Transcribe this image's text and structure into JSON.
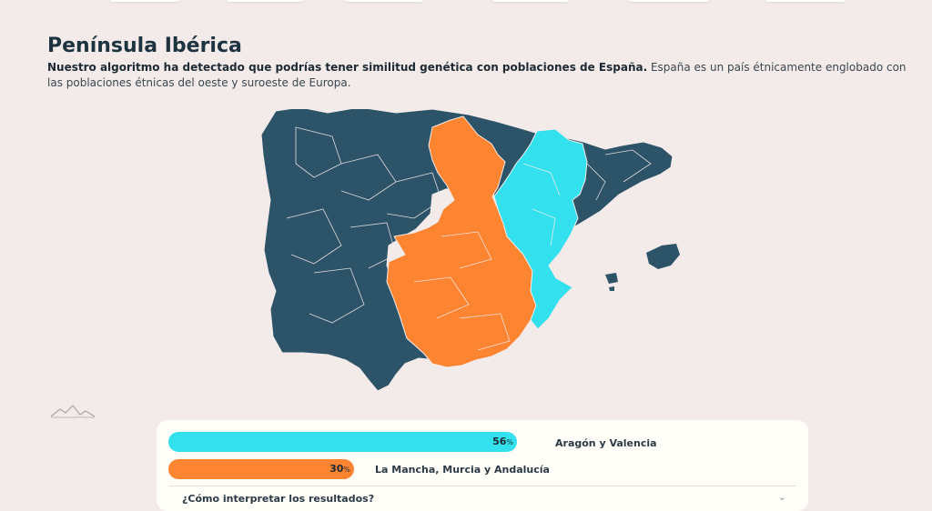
{
  "colors": {
    "dark": "#2c5368",
    "orange": "#fd8430",
    "cyan": "#33e1ee",
    "background": "#f3ebe9"
  },
  "section": {
    "title": "Península Ibérica",
    "desc_bold": "Nuestro algoritmo ha detectado que podrías tener similitud genética con poblaciones de España.",
    "desc_rest": " España es un país étnicamente englobado con las poblaciones étnicas del oeste y suroeste de Europa."
  },
  "map": {
    "icon": "iberian-peninsula-map"
  },
  "results": [
    {
      "value": 56,
      "value_text": "56",
      "pct_symbol": "%",
      "label": "Aragón y Valencia",
      "color": "#33e1ee"
    },
    {
      "value": 30,
      "value_text": "30",
      "pct_symbol": "%",
      "label": "La Mancha, Murcia y Andalucía",
      "color": "#fd8430"
    }
  ],
  "faq": {
    "question": "¿Cómo interpretar los resultados?",
    "icon": "chevron-down-icon"
  }
}
